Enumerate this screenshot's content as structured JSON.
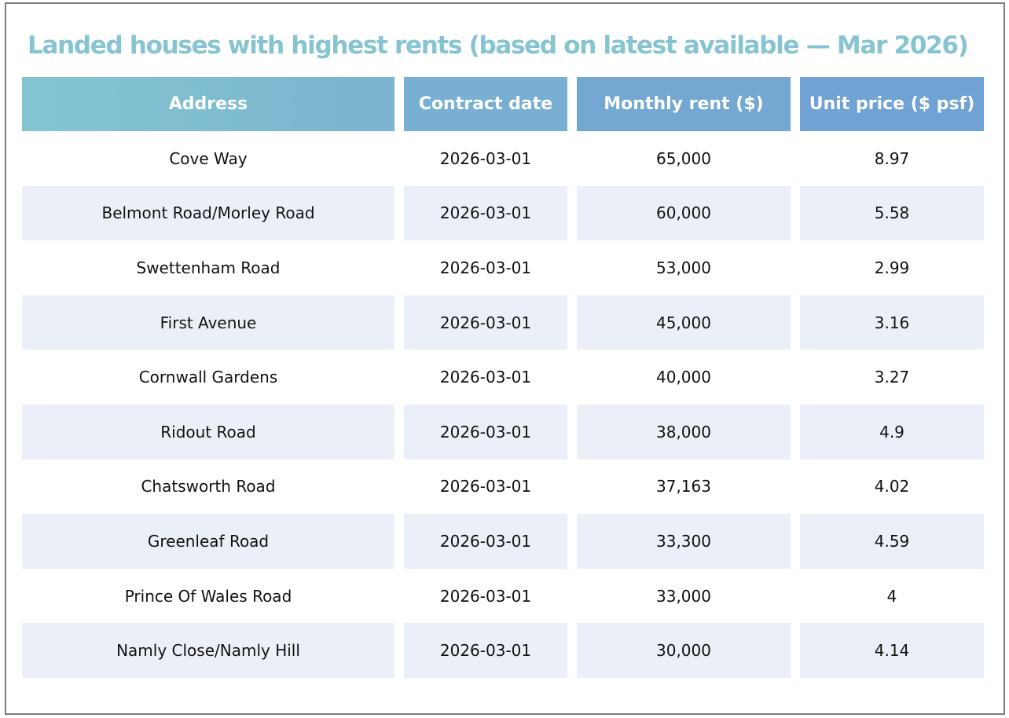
{
  "chart_data": {
    "type": "table",
    "title": "Landed houses with highest rents  (based on latest available — Mar 2026)",
    "columns": [
      "Address",
      "Contract date",
      "Monthly rent ($)",
      "Unit price ($ psf)"
    ],
    "rows": [
      {
        "address": "Cove Way",
        "date": "2026-03-01",
        "rent": "65,000",
        "price": "8.97"
      },
      {
        "address": "Belmont Road/Morley Road",
        "date": "2026-03-01",
        "rent": "60,000",
        "price": "5.58"
      },
      {
        "address": "Swettenham Road",
        "date": "2026-03-01",
        "rent": "53,000",
        "price": "2.99"
      },
      {
        "address": "First Avenue",
        "date": "2026-03-01",
        "rent": "45,000",
        "price": "3.16"
      },
      {
        "address": "Cornwall Gardens",
        "date": "2026-03-01",
        "rent": "40,000",
        "price": "3.27"
      },
      {
        "address": "Ridout Road",
        "date": "2026-03-01",
        "rent": "38,000",
        "price": "4.9"
      },
      {
        "address": "Chatsworth Road",
        "date": "2026-03-01",
        "rent": "37,163",
        "price": "4.02"
      },
      {
        "address": "Greenleaf Road",
        "date": "2026-03-01",
        "rent": "33,300",
        "price": "4.59"
      },
      {
        "address": "Prince Of Wales Road",
        "date": "2026-03-01",
        "rent": "33,000",
        "price": "4"
      },
      {
        "address": "Namly Close/Namly Hill",
        "date": "2026-03-01",
        "rent": "30,000",
        "price": "4.14"
      }
    ]
  },
  "colors": {
    "title": "#86c4d2",
    "header_start": "#84c5d1",
    "header_end": "#70a2d4",
    "row_shade": "#ebf0f8"
  }
}
